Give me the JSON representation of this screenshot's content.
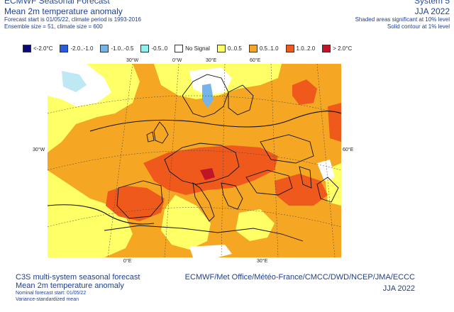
{
  "header": {
    "clip_left": "ECMWF Seasonal Forecast",
    "clip_right": "System 5",
    "title": "Mean 2m temperature anomaly",
    "forecast_line": "Forecast start is 01/05/22, climate period is 1993-2016",
    "ensemble_line": "Ensemble size = 51, climate size = 600",
    "season": "JJA 2022",
    "shaded_note": "Shaded areas significant at 10% level",
    "contour_note": "Solid contour at 1% level"
  },
  "legend": [
    {
      "label": "<-2.0°C",
      "color": "#0a0a7a"
    },
    {
      "label": "-2.0..-1.0",
      "color": "#2a5ce0"
    },
    {
      "label": "-1.0..-0.5",
      "color": "#74b4e8"
    },
    {
      "label": "-0.5..0",
      "color": "#8ff0f0"
    },
    {
      "label": "No Signal",
      "color": "#ffffff"
    },
    {
      "label": "0..0.5",
      "color": "#ffff66"
    },
    {
      "label": "0.5..1.0",
      "color": "#f5a623"
    },
    {
      "label": "1.0..2.0",
      "color": "#ef5a1c"
    },
    {
      "label": "> 2.0°C",
      "color": "#c01428"
    }
  ],
  "grid_labels": {
    "top": [
      "30°W",
      "0°W",
      "30°E",
      "60°E"
    ],
    "left": "30°W",
    "right": "60°E",
    "bottom": [
      "0°E",
      "30°E"
    ]
  },
  "footer": {
    "line1": "C3S multi-system seasonal forecast",
    "line2": "Mean 2m temperature anomaly",
    "line3": "Nominal forecast start: 01/05/22",
    "line4": "Variance-standardized mean",
    "centres": "ECMWF/Met Office/Météo-France/CMCC/DWD/NCEP/JMA/ECCC",
    "season": "JJA 2022"
  }
}
